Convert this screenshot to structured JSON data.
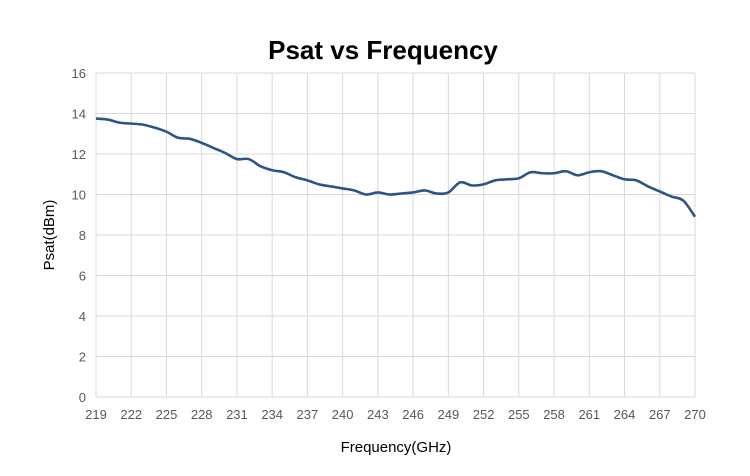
{
  "chart_data": {
    "type": "line",
    "title": "Psat vs Frequency",
    "xlabel": "Frequency(GHz)",
    "ylabel": "Psat(dBm)",
    "xlim": [
      219,
      270
    ],
    "ylim": [
      0,
      16
    ],
    "xticks": [
      "219",
      "222",
      "225",
      "228",
      "231",
      "234",
      "237",
      "240",
      "243",
      "246",
      "249",
      "252",
      "255",
      "258",
      "261",
      "264",
      "267",
      "270"
    ],
    "yticks": [
      "0",
      "2",
      "4",
      "6",
      "8",
      "10",
      "12",
      "14",
      "16"
    ],
    "grid": true,
    "line_color": "#2E5486",
    "x": [
      219,
      220,
      221,
      222,
      223,
      224,
      225,
      226,
      227,
      228,
      229,
      230,
      231,
      232,
      233,
      234,
      235,
      236,
      237,
      238,
      239,
      240,
      241,
      242,
      243,
      244,
      245,
      246,
      247,
      248,
      249,
      250,
      251,
      252,
      253,
      254,
      255,
      256,
      257,
      258,
      259,
      260,
      261,
      262,
      263,
      264,
      265,
      266,
      267,
      268,
      269,
      270
    ],
    "y": [
      13.75,
      13.7,
      13.55,
      13.5,
      13.45,
      13.3,
      13.1,
      12.8,
      12.75,
      12.55,
      12.3,
      12.05,
      11.75,
      11.75,
      11.4,
      11.2,
      11.1,
      10.85,
      10.7,
      10.5,
      10.4,
      10.3,
      10.2,
      10.0,
      10.1,
      10.0,
      10.05,
      10.1,
      10.2,
      10.05,
      10.1,
      10.6,
      10.45,
      10.5,
      10.7,
      10.75,
      10.8,
      11.1,
      11.05,
      11.05,
      11.15,
      10.95,
      11.1,
      11.15,
      10.95,
      10.75,
      10.7,
      10.4,
      10.15,
      9.9,
      9.7,
      8.9
    ]
  }
}
